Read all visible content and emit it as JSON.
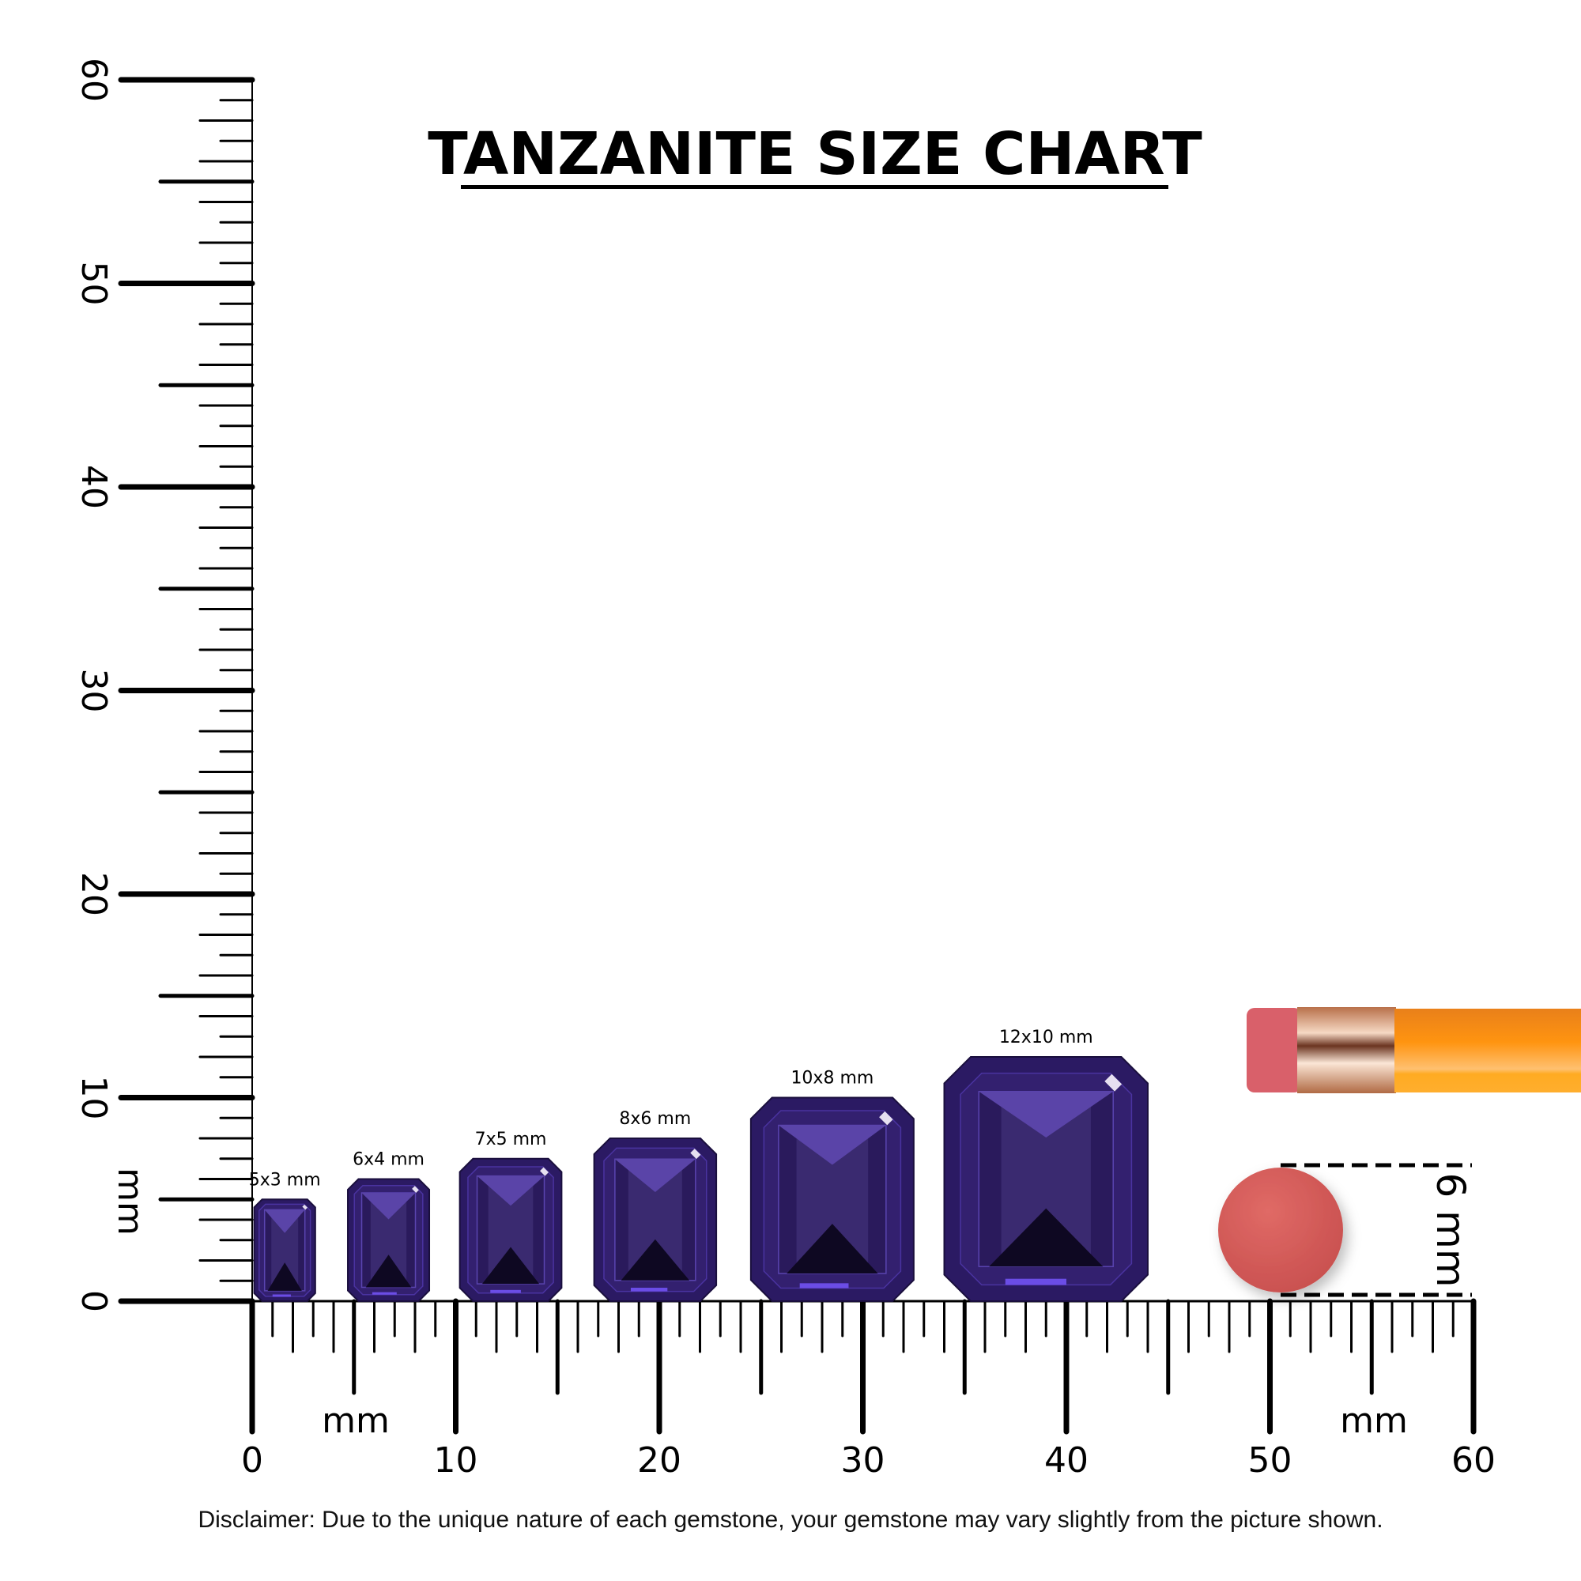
{
  "chart_data": {
    "type": "size-comparison",
    "title": "TANZANITE SIZE CHART",
    "unit_label": "mm",
    "x_axis": {
      "range": [
        0,
        60
      ],
      "tick_labels": [
        "0",
        "10",
        "20",
        "30",
        "40",
        "50",
        "60"
      ],
      "unit": "mm"
    },
    "y_axis": {
      "range": [
        0,
        60
      ],
      "tick_labels": [
        "0",
        "10",
        "20",
        "30",
        "40",
        "50",
        "60"
      ],
      "unit": "mm"
    },
    "gemstones": [
      {
        "label": "5x3 mm",
        "length_mm": 5,
        "width_mm": 3,
        "x_start_mm": 0.1
      },
      {
        "label": "6x4 mm",
        "length_mm": 6,
        "width_mm": 4,
        "x_start_mm": 4.7
      },
      {
        "label": "7x5 mm",
        "length_mm": 7,
        "width_mm": 5,
        "x_start_mm": 10.2
      },
      {
        "label": "8x6 mm",
        "length_mm": 8,
        "width_mm": 6,
        "x_start_mm": 16.8
      },
      {
        "label": "10x8 mm",
        "length_mm": 10,
        "width_mm": 8,
        "x_start_mm": 24.5
      },
      {
        "label": "12x10 mm",
        "length_mm": 12,
        "width_mm": 10,
        "x_start_mm": 34.0
      }
    ],
    "reference": {
      "label": "6 mm",
      "object": "pencil eraser",
      "diameter_mm": 6
    },
    "gem_color": "#2b1a63",
    "eraser_color": "#d35a5a",
    "pencil_color": "#f7941d"
  },
  "disclaimer": "Disclaimer: Due to the unique nature of each gemstone, your gemstone may vary slightly from the picture shown."
}
